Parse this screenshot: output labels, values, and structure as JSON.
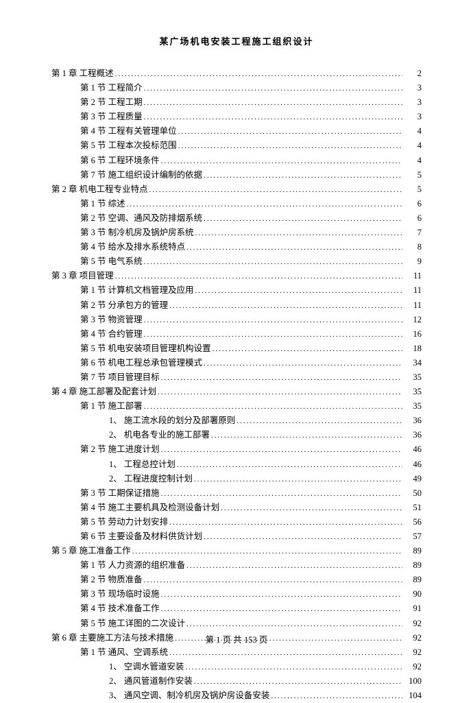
{
  "doc_title": "某广场机电安装工程施工组织设计",
  "footer_prefix": "第",
  "footer_current": "1",
  "footer_mid": "页 共",
  "footer_total": "153",
  "footer_suffix": "页",
  "toc": [
    {
      "indent": 0,
      "label": "第 1 章 工程概述",
      "page": "2"
    },
    {
      "indent": 1,
      "label": "第 1 节 工程简介",
      "page": "3"
    },
    {
      "indent": 1,
      "label": "第 2 节 工程工期",
      "page": "3"
    },
    {
      "indent": 1,
      "label": "第 3 节 工程质量",
      "page": "3"
    },
    {
      "indent": 1,
      "label": "第 4 节 工程有关管理单位",
      "page": "4"
    },
    {
      "indent": 1,
      "label": "第 5 节 工程本次投标范围",
      "page": "4"
    },
    {
      "indent": 1,
      "label": "第 6 节 工程环境条件",
      "page": "4"
    },
    {
      "indent": 1,
      "label": "第 7 节 施工组织设计编制的依据",
      "page": "5"
    },
    {
      "indent": 0,
      "label": "第 2 章 机电工程专业特点",
      "page": "5"
    },
    {
      "indent": 1,
      "label": "第 1 节 综述",
      "page": "6"
    },
    {
      "indent": 1,
      "label": "第 2 节 空调、通风及防排烟系统",
      "page": "6"
    },
    {
      "indent": 1,
      "label": "第 3 节 制冷机房及锅炉房系统",
      "page": "7"
    },
    {
      "indent": 1,
      "label": "第 4 节 给水及排水系统特点",
      "page": "8"
    },
    {
      "indent": 1,
      "label": "第 5 节 电气系统",
      "page": "9"
    },
    {
      "indent": 0,
      "label": "第 3 章 项目管理",
      "page": "11"
    },
    {
      "indent": 1,
      "label": "第 1 节 计算机文档管理及应用",
      "page": "11"
    },
    {
      "indent": 1,
      "label": "第 2 节 分承包方的管理",
      "page": "11"
    },
    {
      "indent": 1,
      "label": "第 3 节 物资管理",
      "page": "12"
    },
    {
      "indent": 1,
      "label": "第 4 节 合约管理",
      "page": "16"
    },
    {
      "indent": 1,
      "label": "第 5 节 机电安装项目管理机构设置",
      "page": "18"
    },
    {
      "indent": 1,
      "label": "第 6 节 机电工程总承包管理模式",
      "page": "34"
    },
    {
      "indent": 1,
      "label": "第 7 节 项目管理目标",
      "page": "35"
    },
    {
      "indent": 0,
      "label": "第 4 章 施工部署及配套计划",
      "page": "35"
    },
    {
      "indent": 1,
      "label": "第 1 节 施工部署",
      "page": "35"
    },
    {
      "indent": 2,
      "label": "1、 施工流水段的划分及部署原则",
      "page": "36"
    },
    {
      "indent": 2,
      "label": "2、 机电各专业的施工部署",
      "page": "36"
    },
    {
      "indent": 1,
      "label": "第 2 节 施工进度计划",
      "page": "46"
    },
    {
      "indent": 2,
      "label": "1、 工程总控计划",
      "page": "46"
    },
    {
      "indent": 2,
      "label": "2、 工程进度控制计划",
      "page": "49"
    },
    {
      "indent": 1,
      "label": "第 3 节 工期保证措施",
      "page": "50"
    },
    {
      "indent": 1,
      "label": "第 4 节 施工主要机具及检测设备计划",
      "page": "51"
    },
    {
      "indent": 1,
      "label": "第 5 节 劳动力计划安排",
      "page": "56"
    },
    {
      "indent": 1,
      "label": "第 6 节 主要设备及材料供货计划",
      "page": "57"
    },
    {
      "indent": 0,
      "label": "第 5 章 施工准备工作",
      "page": "89"
    },
    {
      "indent": 1,
      "label": "第 1 节 人力资源的组织准备",
      "page": "89"
    },
    {
      "indent": 1,
      "label": "第 2 节 物质准备",
      "page": "89"
    },
    {
      "indent": 1,
      "label": "第 3 节 现场临时设施",
      "page": "90"
    },
    {
      "indent": 1,
      "label": "第 4 节 技术准备工作",
      "page": "91"
    },
    {
      "indent": 1,
      "label": "第 5 节 施工详图的二次设计",
      "page": "92"
    },
    {
      "indent": 0,
      "label": "第 6 章 主要施工方法与技术措施",
      "page": "92"
    },
    {
      "indent": 1,
      "label": "第 1 节 通风、空调系统",
      "page": "92"
    },
    {
      "indent": 2,
      "label": "1、 空调水管道安装",
      "page": "92"
    },
    {
      "indent": 2,
      "label": "2、 通风管道制作安装",
      "page": "100"
    },
    {
      "indent": 2,
      "label": "3、 通风空调、制冷机房及锅炉房设备安装",
      "page": "104"
    }
  ]
}
